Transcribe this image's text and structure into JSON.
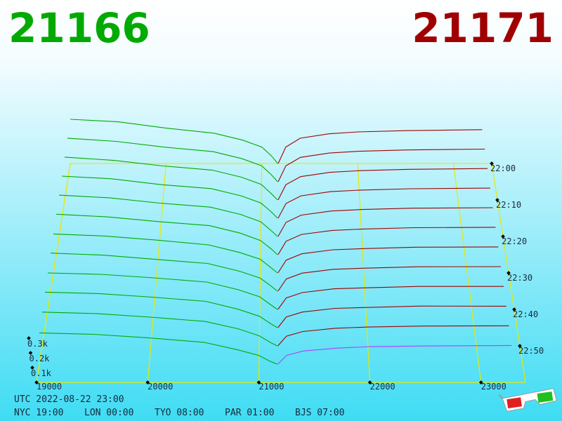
{
  "chart_data": {
    "type": "depth3d",
    "best_bid": 21166,
    "best_ask": 21171,
    "bid_color": "#00aa00",
    "ask_color": "#a00000",
    "latest_color": "#b040ff",
    "floor_color": "#e8e800",
    "xlim": [
      19000,
      23400
    ],
    "xticks": [
      19000,
      20000,
      21000,
      22000,
      23000
    ],
    "tlim": [
      0,
      60
    ],
    "tticks": [
      {
        "value": 0,
        "label": "22:00"
      },
      {
        "value": 10,
        "label": "22:10"
      },
      {
        "value": 20,
        "label": "22:20"
      },
      {
        "value": 30,
        "label": "22:30"
      },
      {
        "value": 40,
        "label": "22:40"
      },
      {
        "value": 50,
        "label": "22:50"
      }
    ],
    "zlim": [
      0,
      300
    ],
    "zticks": [
      {
        "value": 100,
        "label": "0.1k"
      },
      {
        "value": 200,
        "label": "0.2k"
      },
      {
        "value": 300,
        "label": "0.3k"
      }
    ],
    "bid_prices": [
      19000,
      19500,
      20000,
      20500,
      20800,
      21000,
      21100,
      21166
    ],
    "ask_prices": [
      21171,
      21250,
      21400,
      21700,
      22000,
      22500,
      23300
    ],
    "snapshots": [
      {
        "t": 0,
        "bids": [
          350,
          330,
          280,
          240,
          185,
          130,
          60,
          0
        ],
        "asks": [
          0,
          130,
          200,
          235,
          250,
          260,
          268
        ]
      },
      {
        "t": 5,
        "bids": [
          340,
          315,
          270,
          235,
          180,
          125,
          55,
          0
        ],
        "asks": [
          0,
          124,
          190,
          224,
          238,
          248,
          255
        ]
      },
      {
        "t": 10,
        "bids": [
          330,
          305,
          262,
          230,
          175,
          120,
          50,
          0
        ],
        "asks": [
          0,
          118,
          180,
          213,
          226,
          236,
          242
        ]
      },
      {
        "t": 15,
        "bids": [
          320,
          300,
          255,
          225,
          170,
          115,
          50,
          0
        ],
        "asks": [
          0,
          112,
          170,
          202,
          214,
          224,
          229
        ]
      },
      {
        "t": 20,
        "bids": [
          310,
          290,
          250,
          220,
          165,
          110,
          45,
          0
        ],
        "asks": [
          0,
          106,
          160,
          191,
          202,
          212,
          216
        ]
      },
      {
        "t": 25,
        "bids": [
          300,
          280,
          245,
          215,
          160,
          105,
          45,
          0
        ],
        "asks": [
          0,
          100,
          150,
          180,
          190,
          200,
          203
        ]
      },
      {
        "t": 30,
        "bids": [
          285,
          270,
          240,
          205,
          150,
          100,
          40,
          0
        ],
        "asks": [
          0,
          94,
          140,
          169,
          178,
          188,
          190
        ]
      },
      {
        "t": 35,
        "bids": [
          275,
          260,
          230,
          200,
          145,
          95,
          40,
          0
        ],
        "asks": [
          0,
          88,
          130,
          158,
          166,
          176,
          177
        ]
      },
      {
        "t": 40,
        "bids": [
          260,
          250,
          225,
          195,
          140,
          90,
          35,
          0
        ],
        "asks": [
          0,
          82,
          120,
          147,
          154,
          164,
          164
        ]
      },
      {
        "t": 45,
        "bids": [
          250,
          240,
          215,
          185,
          130,
          80,
          30,
          0
        ],
        "asks": [
          0,
          76,
          110,
          136,
          142,
          152,
          151
        ]
      },
      {
        "t": 50,
        "bids": [
          235,
          225,
          200,
          170,
          120,
          70,
          25,
          0
        ],
        "asks": [
          0,
          68,
          100,
          123,
          131,
          138,
          140
        ]
      },
      {
        "t": 55,
        "bids": [
          215,
          205,
          180,
          150,
          100,
          60,
          20,
          0
        ],
        "asks": [
          0,
          60,
          90,
          110,
          120,
          125,
          128
        ]
      }
    ],
    "utc_label": "UTC 2022-08-22 23:00",
    "city_clocks": [
      "NYC 19:00",
      "LON 00:00",
      "TYO 08:00",
      "PAR 01:00",
      "BJS 07:00"
    ]
  }
}
